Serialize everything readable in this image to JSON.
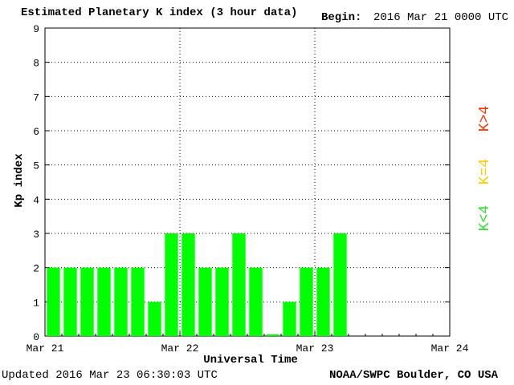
{
  "header": {
    "title": "Estimated Planetary K index (3 hour data)",
    "begin_label": "Begin:",
    "begin_value": "2016 Mar 21 0000 UTC"
  },
  "footer": {
    "updated": "Updated 2016 Mar 23 06:30:03 UTC",
    "credit": "NOAA/SWPC Boulder, CO USA"
  },
  "chart_data": {
    "type": "bar",
    "title": "Estimated Planetary K index (3 hour data)",
    "xlabel": "Universal Time",
    "ylabel": "Kp index",
    "ylim": [
      0,
      9
    ],
    "yticks": [
      "0",
      "1",
      "2",
      "3",
      "4",
      "5",
      "6",
      "7",
      "8",
      "9"
    ],
    "xticks": [
      "Mar 21",
      "Mar 22",
      "Mar 23",
      "Mar 24"
    ],
    "grid": "dotted",
    "bar_color": "#00ff00",
    "values": [
      2,
      2,
      2,
      2,
      2,
      2,
      1,
      3,
      3,
      2,
      2,
      3,
      2,
      0.05,
      1,
      2,
      2,
      3
    ],
    "legend": [
      {
        "label": "K<4",
        "color": "#33dd33"
      },
      {
        "label": "K=4",
        "color": "#ffcc00"
      },
      {
        "label": "K>4",
        "color": "#ff3300"
      }
    ]
  }
}
